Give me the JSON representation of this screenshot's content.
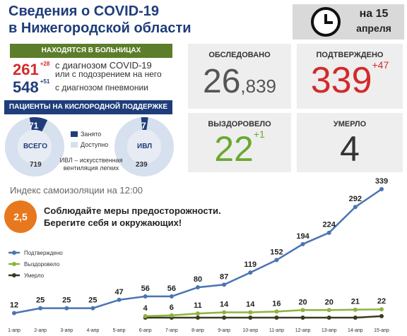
{
  "title": {
    "line1": "Сведения о COVID-19",
    "line2": "в Нижегородской области"
  },
  "date": {
    "line1": "на 15",
    "line2": "апреля"
  },
  "hospitals": {
    "header": "НАХОДЯТСЯ В БОЛЬНИЦАХ",
    "covid": {
      "value": "261",
      "delta": "+28",
      "desc1": "с диагнозом COVID-19",
      "desc2": "или с подозрением на него",
      "color": "#d42a2a"
    },
    "pneumonia": {
      "value": "548",
      "delta": "+51",
      "desc": "с диагнозом пневмонии",
      "color": "#1f3d7a"
    }
  },
  "oxygen": {
    "header": "ПАЦИЕНТЫ НА КИСЛОРОДНОЙ ПОДДЕРЖКЕ",
    "total": {
      "label": "ВСЕГО",
      "occupied": "71",
      "capacity": "719"
    },
    "ivl": {
      "label": "ИВЛ",
      "occupied": "7",
      "capacity": "239"
    },
    "legend_occupied": "Занято",
    "legend_available": "Доступно",
    "note1": "ИВЛ – искусственная",
    "note2": "вентиляция легких"
  },
  "cards": {
    "tested": {
      "label": "ОБСЛЕДОВАНО",
      "value_big": "26",
      "value_small": ",839"
    },
    "confirmed": {
      "label": "ПОДТВЕРЖДЕНО",
      "value": "339",
      "delta": "+47"
    },
    "recovered": {
      "label": "ВЫЗДОРОВЕЛО",
      "value": "22",
      "delta": "+1"
    },
    "died": {
      "label": "УМЕРЛО",
      "value": "4"
    }
  },
  "isolation_index": "Индекс самоизоляции на 12:00",
  "isolation_value": "2,5",
  "warning1": "Соблюдайте меры предосторожности.",
  "warning2": "Берегите себя и окружающих!",
  "colors": {
    "confirmed": "#4a74b4",
    "recovered": "#8db33f",
    "died": "#3a3a20",
    "red": "#d42a2a",
    "green": "#6aa82f",
    "navy": "#1f3d7a",
    "olive": "#5c7d2a",
    "orange": "#e8781e"
  },
  "chart_data": {
    "type": "line",
    "categories": [
      "1-апр",
      "2-апр",
      "3-апр",
      "4-апр",
      "5-апр",
      "6-апр",
      "7-апр",
      "8-апр",
      "9-апр",
      "10-апр",
      "11-апр",
      "12-апр",
      "13-апр",
      "14-апр",
      "15-апр"
    ],
    "series": [
      {
        "name": "Подтверждено",
        "values": [
          12,
          25,
          25,
          25,
          47,
          56,
          56,
          80,
          87,
          119,
          152,
          194,
          224,
          292,
          339
        ]
      },
      {
        "name": "Выздоровело",
        "values": [
          null,
          null,
          null,
          null,
          null,
          4,
          6,
          11,
          14,
          14,
          16,
          20,
          20,
          21,
          22
        ]
      },
      {
        "name": "Умерло",
        "values": [
          null,
          null,
          null,
          null,
          null,
          0,
          0,
          0,
          0,
          0,
          0,
          0,
          0,
          0,
          4
        ]
      }
    ],
    "legend_position": "left"
  }
}
